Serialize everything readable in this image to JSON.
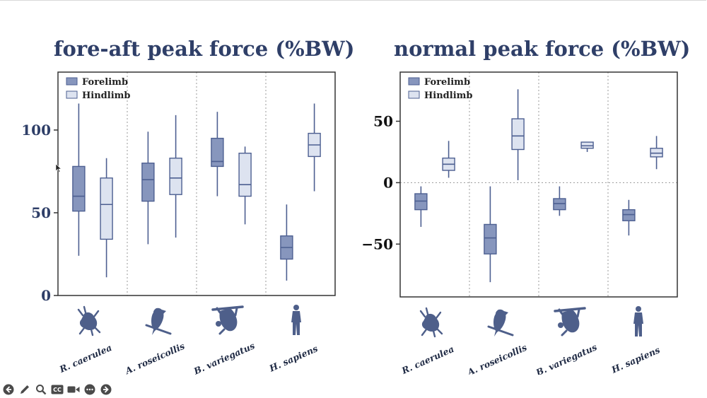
{
  "colors": {
    "title": "#2f3f68",
    "forelimb_fill": "#8796bd",
    "hindlimb_fill": "#dde3f0",
    "box_stroke": "#4d5f91",
    "axis": "#333333",
    "grid": "#9a9a9a",
    "silhouette": "#4e5f8a"
  },
  "species_icons": [
    "frog-icon",
    "parrot-icon",
    "sloth-icon",
    "human-icon"
  ],
  "chart_data": [
    {
      "id": "left",
      "type": "boxplot",
      "title": "fore-aft peak force (%BW)",
      "ylim": [
        0,
        135
      ],
      "yticks": [
        0,
        50,
        100
      ],
      "xlabel": "",
      "ylabel": "",
      "categories": [
        "R. caerulea",
        "A. roseicollis",
        "B. variegatus",
        "H. sapiens"
      ],
      "legend": {
        "position": "top-left",
        "entries": [
          "Forelimb",
          "Hindlimb"
        ]
      },
      "series": [
        {
          "name": "Forelimb",
          "boxes": [
            {
              "min": 24,
              "q1": 51,
              "median": 60,
              "q3": 78,
              "max": 116
            },
            {
              "min": 31,
              "q1": 57,
              "median": 70,
              "q3": 80,
              "max": 99
            },
            {
              "min": 60,
              "q1": 78,
              "median": 81,
              "q3": 95,
              "max": 111
            },
            {
              "min": 9,
              "q1": 22,
              "median": 29,
              "q3": 36,
              "max": 55
            }
          ]
        },
        {
          "name": "Hindlimb",
          "boxes": [
            {
              "min": 11,
              "q1": 34,
              "median": 55,
              "q3": 71,
              "max": 83
            },
            {
              "min": 35,
              "q1": 61,
              "median": 71,
              "q3": 83,
              "max": 109
            },
            {
              "min": 43,
              "q1": 60,
              "median": 67,
              "q3": 86,
              "max": 90
            },
            {
              "min": 63,
              "q1": 84,
              "median": 91,
              "q3": 98,
              "max": 116
            }
          ]
        }
      ]
    },
    {
      "id": "right",
      "type": "boxplot",
      "title": "normal peak force (%BW)",
      "ylim": [
        -93,
        90
      ],
      "yticks": [
        -50,
        0,
        50
      ],
      "xlabel": "",
      "ylabel": "",
      "zero_line": true,
      "categories": [
        "R. caerulea",
        "A. roseicollis",
        "B. variegatus",
        "H. sapiens"
      ],
      "legend": {
        "position": "top-left",
        "entries": [
          "Forelimb",
          "Hindlimb"
        ]
      },
      "series": [
        {
          "name": "Forelimb",
          "boxes": [
            {
              "min": -36,
              "q1": -22,
              "median": -15,
              "q3": -9,
              "max": -3
            },
            {
              "min": -81,
              "q1": -58,
              "median": -45,
              "q3": -34,
              "max": -3
            },
            {
              "min": -27,
              "q1": -22,
              "median": -17,
              "q3": -13,
              "max": -3
            },
            {
              "min": -43,
              "q1": -31,
              "median": -26,
              "q3": -22,
              "max": -14
            }
          ]
        },
        {
          "name": "Hindlimb",
          "boxes": [
            {
              "min": 4,
              "q1": 10,
              "median": 15,
              "q3": 20,
              "max": 34
            },
            {
              "min": 2,
              "q1": 27,
              "median": 38,
              "q3": 52,
              "max": 76
            },
            {
              "min": 25,
              "q1": 28,
              "median": 30,
              "q3": 33,
              "max": 33
            },
            {
              "min": 11,
              "q1": 21,
              "median": 24,
              "q3": 28,
              "max": 38
            }
          ]
        }
      ]
    }
  ],
  "toolbar": {
    "buttons": [
      "back-icon",
      "pen-icon",
      "zoom-icon",
      "captions-icon",
      "video-icon",
      "more-icon",
      "forward-icon"
    ],
    "captions_label": "CC"
  }
}
